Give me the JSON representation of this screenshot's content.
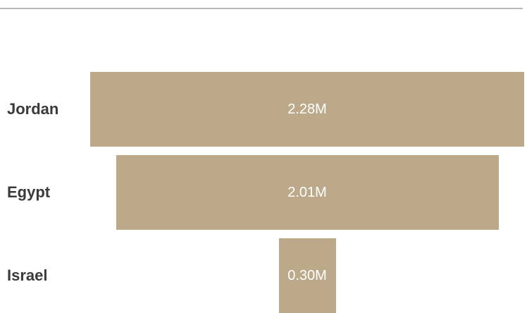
{
  "chart_data": {
    "type": "bar",
    "orientation": "horizontal",
    "style": "funnel",
    "title": "",
    "categories": [
      "Jordan",
      "Egypt",
      "Israel"
    ],
    "values": [
      2.28,
      2.01,
      0.3
    ],
    "value_labels": [
      "2.28M",
      "2.01M",
      "0.30M"
    ],
    "unit": "M",
    "color": "#bba98a",
    "grid": false,
    "legend": "none"
  }
}
